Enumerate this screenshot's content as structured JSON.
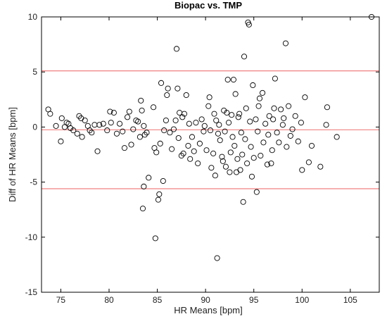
{
  "chart_data": {
    "type": "scatter",
    "title": "Biopac vs. TMP",
    "xlabel": "HR Means [bpm]",
    "ylabel": "Diff of HR Means [bpm]",
    "xlim": [
      73,
      108
    ],
    "ylim": [
      -15,
      10
    ],
    "xticks": [
      75,
      80,
      85,
      90,
      95,
      100,
      105
    ],
    "yticks": [
      -15,
      -10,
      -5,
      0,
      5,
      10
    ],
    "grid": false,
    "marker": "open-circle",
    "colors": {
      "points": "#000000",
      "reference_lines": "#f08080",
      "axes": "#000000"
    },
    "reference_lines": [
      {
        "y": 5.1
      },
      {
        "y": -0.25
      },
      {
        "y": -5.6
      }
    ],
    "points": [
      [
        73.7,
        1.6
      ],
      [
        73.9,
        1.2
      ],
      [
        74.5,
        0.1
      ],
      [
        75.0,
        -1.3
      ],
      [
        75.1,
        0.8
      ],
      [
        75.4,
        0.0
      ],
      [
        75.6,
        0.4
      ],
      [
        75.8,
        0.3
      ],
      [
        76.0,
        -0.1
      ],
      [
        76.3,
        -0.3
      ],
      [
        76.7,
        -0.6
      ],
      [
        76.9,
        1.0
      ],
      [
        77.1,
        0.8
      ],
      [
        77.2,
        -0.9
      ],
      [
        77.5,
        0.6
      ],
      [
        77.8,
        0.1
      ],
      [
        78.0,
        -0.3
      ],
      [
        78.2,
        -0.5
      ],
      [
        78.5,
        0.2
      ],
      [
        78.8,
        -2.2
      ],
      [
        79.0,
        0.2
      ],
      [
        79.4,
        0.3
      ],
      [
        79.8,
        -0.3
      ],
      [
        80.1,
        1.4
      ],
      [
        80.2,
        0.4
      ],
      [
        80.5,
        1.3
      ],
      [
        80.8,
        -0.6
      ],
      [
        81.1,
        0.3
      ],
      [
        81.4,
        -0.4
      ],
      [
        81.6,
        -1.9
      ],
      [
        81.9,
        0.9
      ],
      [
        82.1,
        1.4
      ],
      [
        82.3,
        -1.6
      ],
      [
        82.5,
        -0.2
      ],
      [
        82.8,
        0.6
      ],
      [
        83.0,
        0.5
      ],
      [
        83.2,
        -0.9
      ],
      [
        83.3,
        2.4
      ],
      [
        83.4,
        1.5
      ],
      [
        83.6,
        0.1
      ],
      [
        83.7,
        -0.7
      ],
      [
        83.9,
        -0.5
      ],
      [
        83.5,
        -7.4
      ],
      [
        83.6,
        -5.4
      ],
      [
        84.1,
        -4.6
      ],
      [
        84.6,
        1.8
      ],
      [
        84.7,
        -1.9
      ],
      [
        84.8,
        -10.1
      ],
      [
        84.9,
        -2.3
      ],
      [
        85.1,
        -6.6
      ],
      [
        85.2,
        -6.1
      ],
      [
        85.3,
        -1.5
      ],
      [
        85.4,
        4.0
      ],
      [
        85.6,
        -4.9
      ],
      [
        85.7,
        -0.3
      ],
      [
        85.9,
        0.6
      ],
      [
        86.0,
        2.9
      ],
      [
        86.1,
        3.5
      ],
      [
        86.3,
        -0.5
      ],
      [
        86.5,
        -2.0
      ],
      [
        86.7,
        -0.2
      ],
      [
        86.9,
        0.6
      ],
      [
        87.0,
        7.1
      ],
      [
        87.1,
        3.5
      ],
      [
        87.2,
        -1.0
      ],
      [
        87.3,
        1.3
      ],
      [
        87.5,
        -2.6
      ],
      [
        87.6,
        0.9
      ],
      [
        87.7,
        -2.4
      ],
      [
        87.8,
        1.2
      ],
      [
        88.0,
        2.9
      ],
      [
        88.2,
        -1.7
      ],
      [
        88.3,
        0.3
      ],
      [
        88.4,
        -2.9
      ],
      [
        88.6,
        -0.9
      ],
      [
        88.8,
        -2.2
      ],
      [
        89.0,
        0.4
      ],
      [
        89.2,
        -3.3
      ],
      [
        89.4,
        -1.5
      ],
      [
        89.6,
        0.7
      ],
      [
        89.8,
        -0.4
      ],
      [
        89.9,
        0.1
      ],
      [
        90.1,
        -2.1
      ],
      [
        90.3,
        1.9
      ],
      [
        90.4,
        2.7
      ],
      [
        90.5,
        -0.3
      ],
      [
        90.6,
        -3.7
      ],
      [
        90.8,
        -2.4
      ],
      [
        90.9,
        1.2
      ],
      [
        91.0,
        -4.4
      ],
      [
        91.1,
        0.6
      ],
      [
        91.2,
        -11.9
      ],
      [
        91.3,
        -0.6
      ],
      [
        91.4,
        0.2
      ],
      [
        91.5,
        -1.2
      ],
      [
        91.7,
        -2.7
      ],
      [
        91.8,
        -3.1
      ],
      [
        91.9,
        1.5
      ],
      [
        92.0,
        -0.4
      ],
      [
        92.1,
        -3.6
      ],
      [
        92.2,
        1.3
      ],
      [
        92.3,
        4.3
      ],
      [
        92.4,
        0.4
      ],
      [
        92.5,
        -4.1
      ],
      [
        92.6,
        -2.3
      ],
      [
        92.7,
        1.1
      ],
      [
        92.8,
        -0.9
      ],
      [
        92.9,
        4.3
      ],
      [
        93.0,
        -1.7
      ],
      [
        93.1,
        3.0
      ],
      [
        93.2,
        -4.1
      ],
      [
        93.3,
        -2.9
      ],
      [
        93.4,
        0.9
      ],
      [
        93.5,
        1.2
      ],
      [
        93.6,
        -3.9
      ],
      [
        93.7,
        -0.5
      ],
      [
        93.8,
        -2.5
      ],
      [
        93.9,
        -6.8
      ],
      [
        94.0,
        6.4
      ],
      [
        94.1,
        -1.1
      ],
      [
        94.2,
        1.7
      ],
      [
        94.3,
        -3.3
      ],
      [
        94.4,
        9.5
      ],
      [
        94.5,
        9.3
      ],
      [
        94.6,
        0.5
      ],
      [
        94.7,
        -1.8
      ],
      [
        94.8,
        -4.5
      ],
      [
        94.9,
        3.8
      ],
      [
        95.0,
        -2.8
      ],
      [
        95.2,
        0.7
      ],
      [
        95.3,
        -5.9
      ],
      [
        95.4,
        -0.4
      ],
      [
        95.5,
        1.9
      ],
      [
        95.6,
        2.6
      ],
      [
        95.7,
        -2.6
      ],
      [
        95.9,
        3.1
      ],
      [
        96.0,
        -1.4
      ],
      [
        96.2,
        0.3
      ],
      [
        96.4,
        -3.4
      ],
      [
        96.5,
        -0.7
      ],
      [
        96.6,
        1.0
      ],
      [
        96.8,
        -3.3
      ],
      [
        96.9,
        -2.1
      ],
      [
        97.0,
        0.7
      ],
      [
        97.1,
        1.7
      ],
      [
        97.2,
        4.4
      ],
      [
        97.4,
        -0.5
      ],
      [
        97.6,
        -1.4
      ],
      [
        97.8,
        1.6
      ],
      [
        98.0,
        0.2
      ],
      [
        98.1,
        0.8
      ],
      [
        98.3,
        7.6
      ],
      [
        98.4,
        -1.8
      ],
      [
        98.6,
        1.9
      ],
      [
        98.8,
        -0.8
      ],
      [
        99.0,
        -0.2
      ],
      [
        99.3,
        1.0
      ],
      [
        99.6,
        -1.3
      ],
      [
        99.9,
        0.4
      ],
      [
        100.0,
        -3.9
      ],
      [
        100.3,
        2.7
      ],
      [
        100.7,
        -3.2
      ],
      [
        101.0,
        -1.7
      ],
      [
        101.9,
        -3.6
      ],
      [
        102.5,
        0.2
      ],
      [
        102.6,
        1.8
      ],
      [
        103.6,
        -0.9
      ],
      [
        107.2,
        10.0
      ]
    ]
  }
}
